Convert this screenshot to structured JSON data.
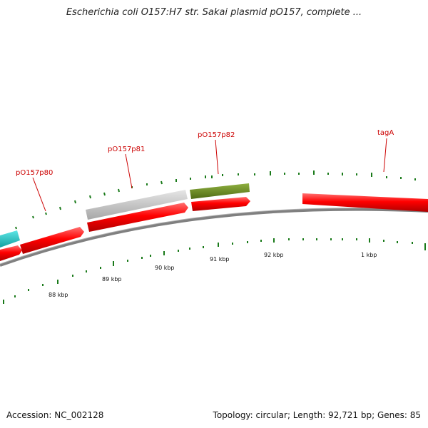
{
  "title": "Escherichia coli O157:H7 str. Sakai plasmid pO157, complete ...",
  "footer": {
    "accession": "Accession: NC_002128",
    "summary": "Topology: circular; Length: 92,721 bp; Genes: 85"
  },
  "colors": {
    "forward_gene": "#ff0000",
    "gene_label": "#cc0000",
    "backbone": "#808080",
    "tick": "#1a7a1a",
    "cyan_feature": "#1fc8c8",
    "grey_feature": "#c4c4c4",
    "green_feature": "#6b8e23"
  },
  "gene_labels": [
    "pO157p80",
    "pO157p81",
    "pO157p82",
    "tagA"
  ],
  "kbp_labels": [
    "88 kbp",
    "89 kbp",
    "90 kbp",
    "91 kbp",
    "92 kbp",
    "1 kbp"
  ]
}
